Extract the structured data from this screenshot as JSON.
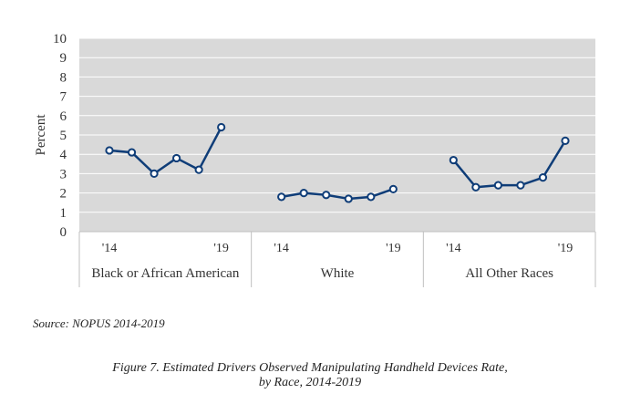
{
  "chart_data": {
    "type": "line",
    "title": "",
    "xlabel": "",
    "ylabel": "Percent",
    "ylim": [
      0,
      10
    ],
    "yticks": [
      0,
      1,
      2,
      3,
      4,
      5,
      6,
      7,
      8,
      9,
      10
    ],
    "grid": true,
    "years": [
      2014,
      2015,
      2016,
      2017,
      2018,
      2019
    ],
    "panels": [
      {
        "name": "Black or African American",
        "start_label": "'14",
        "end_label": "'19",
        "values": [
          4.2,
          4.1,
          3.0,
          3.8,
          3.2,
          5.4
        ]
      },
      {
        "name": "White",
        "start_label": "'14",
        "end_label": "'19",
        "values": [
          1.8,
          2.0,
          1.9,
          1.7,
          1.8,
          2.2
        ]
      },
      {
        "name": "All Other Races",
        "start_label": "'14",
        "end_label": "'19",
        "values": [
          3.7,
          2.3,
          2.4,
          2.4,
          2.8,
          4.7
        ]
      }
    ],
    "colors": {
      "line": "#0f3d78",
      "plot_bg": "#d9d9d9",
      "grid": "#ffffff",
      "marker_fill": "#ffffff"
    }
  },
  "source": "Source: NOPUS 2014-2019",
  "caption": {
    "line1": "Figure 7. Estimated Drivers Observed Manipulating Handheld Devices Rate,",
    "line2": "by Race, 2014-2019"
  }
}
